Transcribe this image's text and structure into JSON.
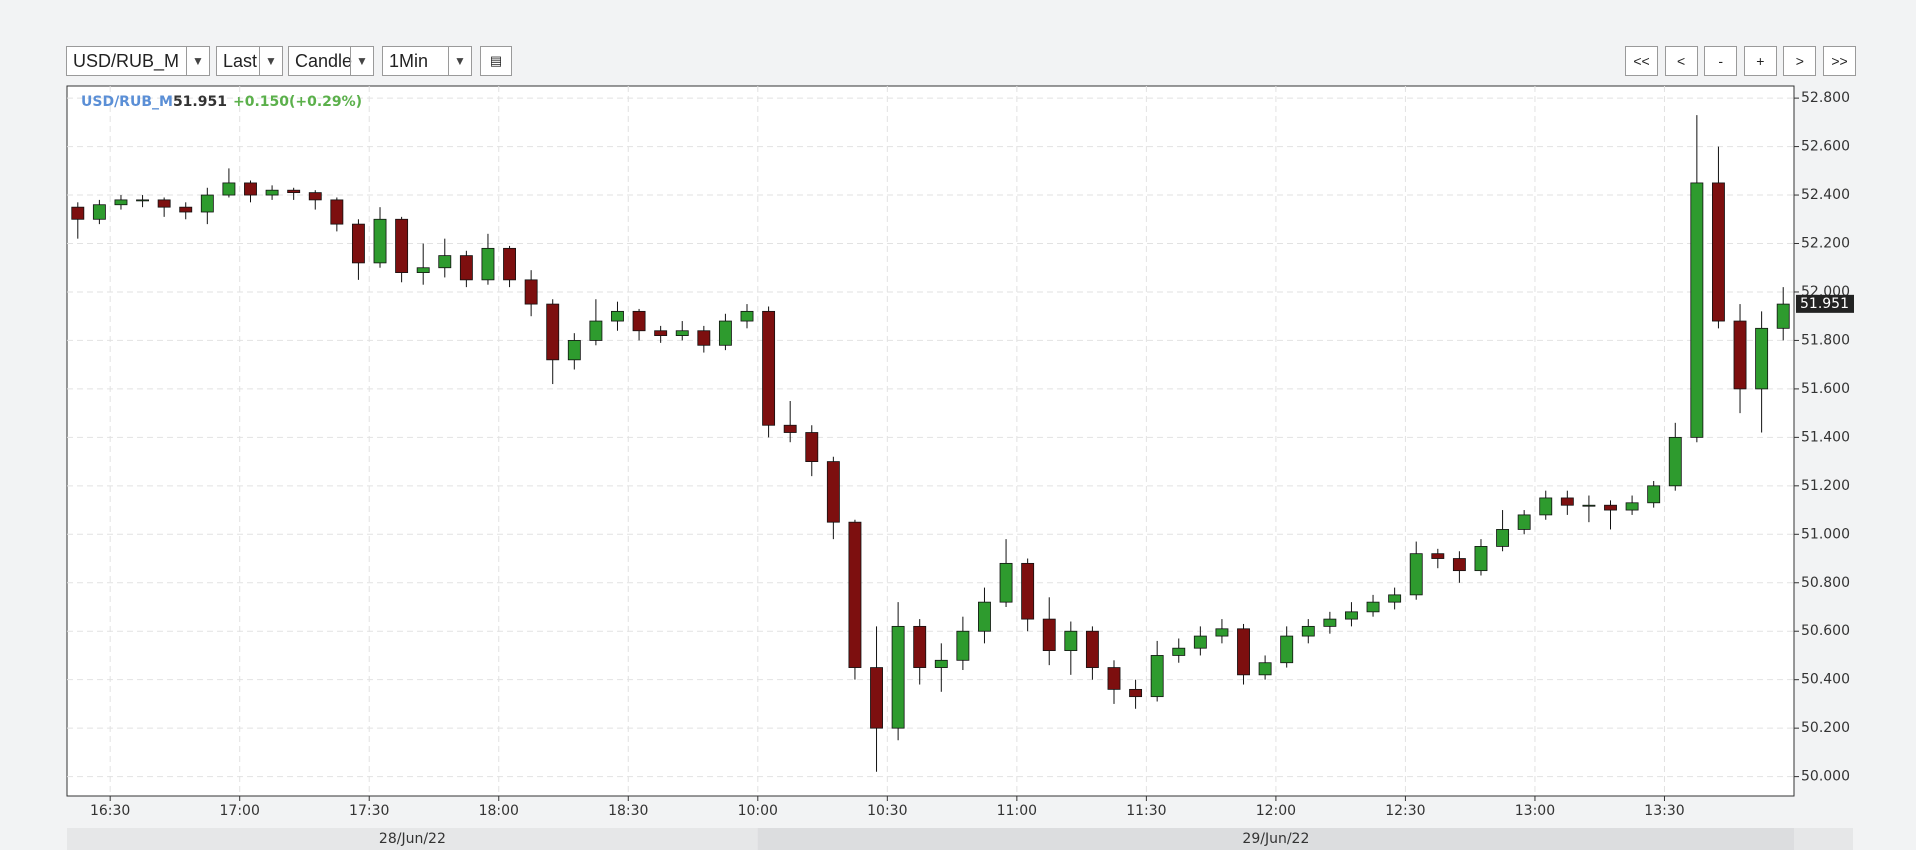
{
  "toolbar": {
    "symbol": "USD/RUB_M",
    "price_type": "Last",
    "chart_style": "Candle",
    "interval": "1Min",
    "nav_buttons": [
      "<<",
      "<",
      "-",
      "+",
      ">",
      ">>"
    ]
  },
  "chart_data": {
    "type": "candlestick",
    "header": {
      "symbol": "USD/RUB_M",
      "change": "+0.150(+0.29%)"
    },
    "last": 51.951,
    "dates": [
      "28/Jun/22",
      "29/Jun/22"
    ],
    "x": [
      "16:20",
      "16:25",
      "16:30",
      "16:35",
      "16:40",
      "16:45",
      "16:50",
      "16:55",
      "17:00",
      "17:05",
      "17:10",
      "17:15",
      "17:20",
      "17:25",
      "17:30",
      "17:35",
      "17:40",
      "17:45",
      "17:50",
      "17:55",
      "18:00",
      "18:05",
      "18:10",
      "18:15",
      "18:20",
      "18:25",
      "18:30",
      "18:35",
      "18:40",
      "18:45",
      "18:50",
      "18:55",
      "10:00",
      "10:05",
      "10:10",
      "10:15",
      "10:20",
      "10:25",
      "10:30",
      "10:35",
      "10:40",
      "10:45",
      "10:50",
      "10:55",
      "11:00",
      "11:05",
      "11:10",
      "11:15",
      "11:20",
      "11:25",
      "11:30",
      "11:35",
      "11:40",
      "11:45",
      "11:50",
      "11:55",
      "12:00",
      "12:05",
      "12:10",
      "12:15",
      "12:20",
      "12:25",
      "12:30",
      "12:35",
      "12:40",
      "12:45",
      "12:50",
      "12:55",
      "13:00",
      "13:05",
      "13:10",
      "13:15",
      "13:20",
      "13:25",
      "13:30",
      "13:35",
      "13:40",
      "13:45",
      "13:50",
      "13:55"
    ],
    "open": [
      52.35,
      52.3,
      52.36,
      52.38,
      52.38,
      52.35,
      52.33,
      52.4,
      52.45,
      52.4,
      52.42,
      52.41,
      52.38,
      52.28,
      52.12,
      52.3,
      52.08,
      52.1,
      52.15,
      52.05,
      52.18,
      52.05,
      51.95,
      51.72,
      51.8,
      51.88,
      51.92,
      51.84,
      51.82,
      51.84,
      51.78,
      51.88,
      51.92,
      51.45,
      51.42,
      51.3,
      51.05,
      50.45,
      50.2,
      50.62,
      50.45,
      50.48,
      50.6,
      50.72,
      50.88,
      50.65,
      50.52,
      50.6,
      50.45,
      50.36,
      50.33,
      50.5,
      50.53,
      50.58,
      50.61,
      50.42,
      50.47,
      50.58,
      50.62,
      50.65,
      50.68,
      50.72,
      50.75,
      50.92,
      50.9,
      50.85,
      50.95,
      51.02,
      51.08,
      51.15,
      51.12,
      51.12,
      51.1,
      51.13,
      51.2,
      51.4,
      52.45,
      51.88,
      51.6,
      51.85
    ],
    "high": [
      52.37,
      52.38,
      52.4,
      52.4,
      52.39,
      52.37,
      52.43,
      52.51,
      52.46,
      52.44,
      52.43,
      52.42,
      52.39,
      52.3,
      52.35,
      52.31,
      52.2,
      52.22,
      52.17,
      52.24,
      52.19,
      52.09,
      51.97,
      51.83,
      51.97,
      51.96,
      51.93,
      51.86,
      51.88,
      51.86,
      51.91,
      51.95,
      51.94,
      51.55,
      51.45,
      51.32,
      51.06,
      50.62,
      50.72,
      50.65,
      50.55,
      50.66,
      50.78,
      50.98,
      50.9,
      50.74,
      50.64,
      50.62,
      50.48,
      50.4,
      50.56,
      50.57,
      50.62,
      50.65,
      50.63,
      50.5,
      50.62,
      50.65,
      50.68,
      50.72,
      50.75,
      50.78,
      50.97,
      50.94,
      50.93,
      50.98,
      51.1,
      51.1,
      51.18,
      51.18,
      51.16,
      51.14,
      51.16,
      51.22,
      51.46,
      52.73,
      52.6,
      51.95,
      51.92,
      52.02
    ],
    "low": [
      52.22,
      52.28,
      52.34,
      52.35,
      52.31,
      52.3,
      52.28,
      52.39,
      52.37,
      52.38,
      52.38,
      52.34,
      52.25,
      52.05,
      52.1,
      52.04,
      52.03,
      52.06,
      52.02,
      52.03,
      52.02,
      51.9,
      51.62,
      51.68,
      51.78,
      51.84,
      51.8,
      51.79,
      51.8,
      51.75,
      51.76,
      51.85,
      51.4,
      51.38,
      51.24,
      50.98,
      50.4,
      50.02,
      50.15,
      50.38,
      50.35,
      50.44,
      50.55,
      50.7,
      50.6,
      50.46,
      50.42,
      50.4,
      50.3,
      50.28,
      50.31,
      50.47,
      50.5,
      50.55,
      50.38,
      50.4,
      50.45,
      50.55,
      50.59,
      50.62,
      50.66,
      50.69,
      50.73,
      50.86,
      50.8,
      50.83,
      50.93,
      51.0,
      51.06,
      51.08,
      51.05,
      51.02,
      51.08,
      51.11,
      51.18,
      51.38,
      51.85,
      51.5,
      51.42,
      51.8
    ],
    "close": [
      52.3,
      52.36,
      52.38,
      52.38,
      52.35,
      52.33,
      52.4,
      52.45,
      52.4,
      52.42,
      52.41,
      52.38,
      52.28,
      52.12,
      52.3,
      52.08,
      52.1,
      52.15,
      52.05,
      52.18,
      52.05,
      51.95,
      51.72,
      51.8,
      51.88,
      51.92,
      51.84,
      51.82,
      51.84,
      51.78,
      51.88,
      51.92,
      51.45,
      51.42,
      51.3,
      51.05,
      50.45,
      50.2,
      50.62,
      50.45,
      50.48,
      50.6,
      50.72,
      50.88,
      50.65,
      50.52,
      50.6,
      50.45,
      50.36,
      50.33,
      50.5,
      50.53,
      50.58,
      50.61,
      50.42,
      50.47,
      50.58,
      50.62,
      50.65,
      50.68,
      50.72,
      50.75,
      50.92,
      50.9,
      50.85,
      50.95,
      51.02,
      51.08,
      51.15,
      51.12,
      51.12,
      51.1,
      51.13,
      51.2,
      51.4,
      52.45,
      51.88,
      51.6,
      51.85,
      51.95
    ],
    "up_color": "#2e9b2e",
    "down_color": "#7d0f0f",
    "xticks": [
      "16:30",
      "17:00",
      "17:30",
      "18:00",
      "18:30",
      "10:00",
      "10:30",
      "11:00",
      "11:30",
      "12:00",
      "12:30",
      "13:00",
      "13:30"
    ],
    "ylim": [
      49.92,
      52.85
    ],
    "yticks": [
      {
        "value": 50,
        "label": "50.000"
      },
      {
        "value": 50.2,
        "label": "50.200"
      },
      {
        "value": 50.4,
        "label": "50.400"
      },
      {
        "value": 50.6,
        "label": "50.600"
      },
      {
        "value": 50.8,
        "label": "50.800"
      },
      {
        "value": 51,
        "label": "51.000"
      },
      {
        "value": 51.2,
        "label": "51.200"
      },
      {
        "value": 51.4,
        "label": "51.400"
      },
      {
        "value": 51.6,
        "label": "51.600"
      },
      {
        "value": 51.8,
        "label": "51.800"
      },
      {
        "value": 52,
        "label": "52.000"
      },
      {
        "value": 52.2,
        "label": "52.200"
      },
      {
        "value": 52.4,
        "label": "52.400"
      },
      {
        "value": 52.6,
        "label": "52.600"
      },
      {
        "value": 52.8,
        "label": "52.800"
      }
    ],
    "grid": true
  }
}
